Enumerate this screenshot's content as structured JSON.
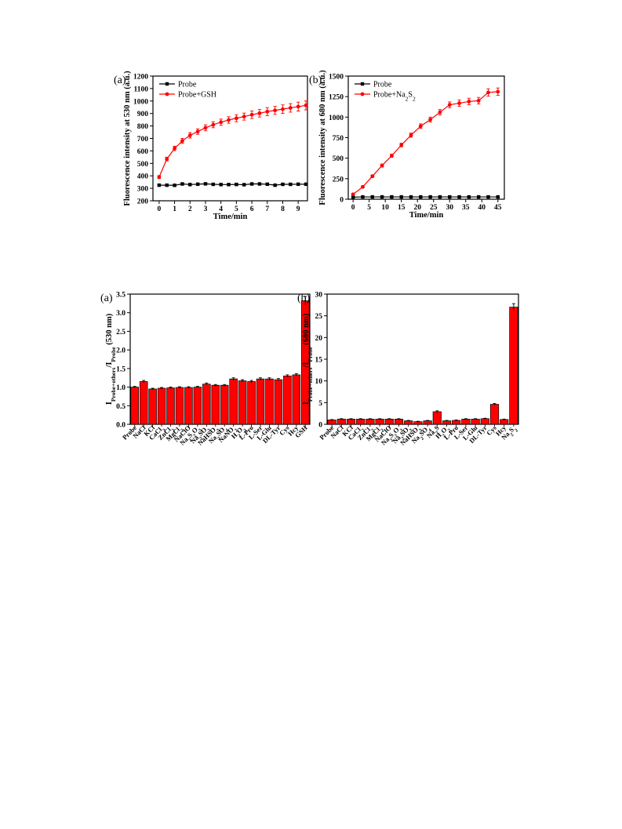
{
  "chart_data": [
    {
      "type": "line",
      "panel_label": "(a)",
      "xlabel": "Time/min",
      "ylabel": "Fluorescence intensity at 530 nm (a.u.)",
      "xlim": [
        -0.4,
        9.6
      ],
      "ylim": [
        200,
        1200
      ],
      "xticks": [
        0,
        1,
        2,
        3,
        4,
        5,
        6,
        7,
        8,
        9
      ],
      "yticks": [
        200,
        300,
        400,
        500,
        600,
        700,
        800,
        900,
        1000,
        1100,
        1200
      ],
      "legend": "top-left",
      "series": [
        {
          "name": "Probe",
          "color": "#000000",
          "marker": "square",
          "x": [
            0,
            0.5,
            1,
            1.5,
            2,
            2.5,
            3,
            3.5,
            4,
            4.5,
            5,
            5.5,
            6,
            6.5,
            7,
            7.5,
            8,
            8.5,
            9,
            9.5
          ],
          "y": [
            325,
            325,
            324,
            335,
            330,
            333,
            336,
            332,
            330,
            330,
            331,
            329,
            335,
            335,
            333,
            325,
            332,
            332,
            333,
            333
          ],
          "err": [
            6,
            6,
            6,
            6,
            6,
            6,
            6,
            6,
            6,
            6,
            6,
            6,
            6,
            6,
            6,
            6,
            6,
            6,
            6,
            6
          ]
        },
        {
          "name": "Probe+GSH",
          "color": "#ff0000",
          "marker": "circle",
          "x": [
            0,
            0.5,
            1,
            1.5,
            2,
            2.5,
            3,
            3.5,
            4,
            4.5,
            5,
            5.5,
            6,
            6.5,
            7,
            7.5,
            8,
            8.5,
            9,
            9.5
          ],
          "y": [
            390,
            535,
            620,
            680,
            725,
            755,
            785,
            810,
            830,
            848,
            862,
            875,
            890,
            902,
            915,
            925,
            935,
            945,
            955,
            965
          ],
          "err": [
            12,
            15,
            18,
            20,
            22,
            22,
            24,
            24,
            25,
            26,
            28,
            28,
            30,
            30,
            32,
            32,
            34,
            34,
            36,
            36
          ]
        }
      ]
    },
    {
      "type": "line",
      "panel_label": "(b)",
      "xlabel": "Time/min",
      "ylabel": "Fluorescence intensity at 680 nm (a.u.)",
      "xlim": [
        -1.5,
        47
      ],
      "ylim": [
        0,
        1500
      ],
      "xticks": [
        0,
        5,
        10,
        15,
        20,
        25,
        30,
        35,
        40,
        45
      ],
      "yticks": [
        0,
        250,
        500,
        750,
        1000,
        1250,
        1500
      ],
      "legend": "top-left",
      "series": [
        {
          "name": "Probe",
          "color": "#000000",
          "marker": "square",
          "x": [
            0,
            3,
            6,
            9,
            12,
            15,
            18,
            21,
            24,
            27,
            30,
            33,
            36,
            39,
            42,
            45
          ],
          "y": [
            25,
            28,
            28,
            28,
            28,
            28,
            28,
            28,
            28,
            28,
            28,
            28,
            28,
            28,
            28,
            28
          ],
          "err": [
            4,
            4,
            4,
            4,
            4,
            4,
            4,
            4,
            4,
            4,
            4,
            4,
            4,
            4,
            4,
            4
          ]
        },
        {
          "name": "Probe+Na2S2",
          "color": "#ff0000",
          "marker": "circle",
          "x": [
            0,
            3,
            6,
            9,
            12,
            15,
            18,
            21,
            24,
            27,
            30,
            33,
            36,
            39,
            42,
            45
          ],
          "y": [
            60,
            150,
            280,
            410,
            530,
            660,
            780,
            890,
            970,
            1060,
            1150,
            1170,
            1190,
            1200,
            1300,
            1310
          ],
          "err": [
            10,
            12,
            15,
            18,
            20,
            22,
            25,
            28,
            30,
            32,
            35,
            38,
            40,
            40,
            45,
            45
          ]
        }
      ]
    },
    {
      "type": "bar",
      "panel_label": "(a)",
      "ylabel": "IProbe+others/IProbe (530 nm)",
      "ylim": [
        0,
        3.5
      ],
      "yticks": [
        0.0,
        0.5,
        1.0,
        1.5,
        2.0,
        2.5,
        3.0,
        3.5
      ],
      "bar_color": "#ff0000",
      "categories": [
        "Probe",
        "NaCl",
        "KCl",
        "CaCl2",
        "ZnCl2",
        "MgCl2",
        "NaClO",
        "Na2S2O3",
        "Na2SO3",
        "NaHSO3",
        "Na2SO4",
        "NaNO2",
        "H2O2",
        "L-Pro",
        "L-Ser",
        "L-Glu",
        "DL-Tyr",
        "Cys",
        "Hcy",
        "GSH"
      ],
      "values": [
        1.0,
        1.15,
        0.95,
        0.97,
        0.98,
        0.99,
        0.99,
        1.0,
        1.08,
        1.05,
        1.05,
        1.22,
        1.17,
        1.15,
        1.22,
        1.22,
        1.2,
        1.3,
        1.33,
        3.32
      ],
      "err": [
        0.02,
        0.03,
        0.02,
        0.02,
        0.02,
        0.02,
        0.02,
        0.02,
        0.03,
        0.02,
        0.02,
        0.03,
        0.03,
        0.03,
        0.03,
        0.03,
        0.03,
        0.03,
        0.03,
        0.12
      ]
    },
    {
      "type": "bar",
      "panel_label": "(b)",
      "ylabel": "IProbe+others/IProbe (680 nm)",
      "ylim": [
        0,
        30
      ],
      "yticks": [
        0,
        5,
        10,
        15,
        20,
        25,
        30
      ],
      "bar_color": "#ff0000",
      "categories": [
        "Probe",
        "NaCl",
        "KCl",
        "CaCl2",
        "ZnCl2",
        "MgCl2",
        "NaClO",
        "Na2S2O3",
        "Na2SO3",
        "NaHSO3",
        "Na2SO4",
        "Na2S",
        "H2O2",
        "L-Pro",
        "L-Ser",
        "L-Glu",
        "DL-Tyr",
        "Cys",
        "Hcy",
        "Na2S2"
      ],
      "values": [
        1.0,
        1.2,
        1.2,
        1.2,
        1.2,
        1.2,
        1.2,
        1.2,
        0.8,
        0.6,
        0.8,
        2.9,
        0.8,
        0.9,
        1.2,
        1.2,
        1.3,
        4.6,
        1.1,
        27.0
      ],
      "err": [
        0.1,
        0.1,
        0.1,
        0.1,
        0.1,
        0.1,
        0.1,
        0.1,
        0.1,
        0.1,
        0.1,
        0.2,
        0.1,
        0.1,
        0.1,
        0.1,
        0.1,
        0.2,
        0.1,
        0.8
      ]
    }
  ]
}
